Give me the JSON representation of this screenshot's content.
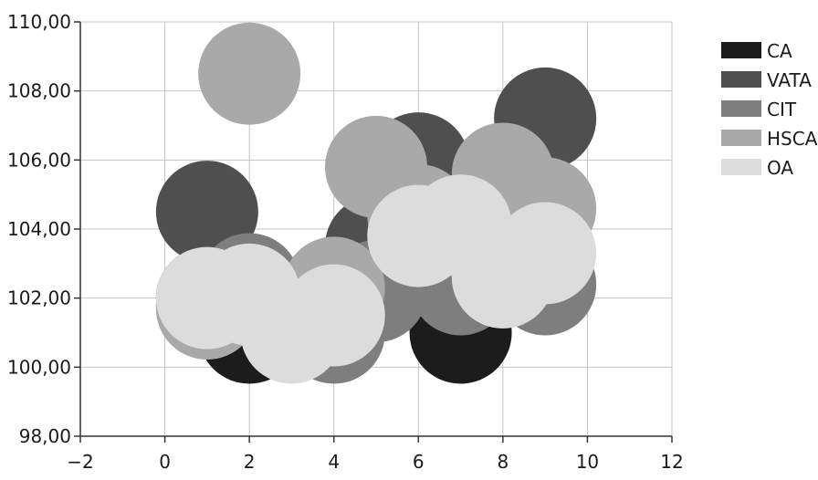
{
  "chart_data": {
    "type": "bubble",
    "x_ticks": [
      "−2",
      "0",
      "2",
      "4",
      "6",
      "8",
      "10",
      "12"
    ],
    "y_ticks": [
      "98,00",
      "100,00",
      "102,00",
      "104,00",
      "106,00",
      "108,00",
      "110,00"
    ],
    "xlim": [
      -2,
      12
    ],
    "ylim": [
      98,
      110
    ],
    "grid": true,
    "legend_position": "right",
    "series": [
      {
        "name": "CA",
        "color": "#1c1c1c",
        "points": [
          {
            "x": 1,
            "y": 102.0
          },
          {
            "x": 2,
            "y": 101.0
          },
          {
            "x": 7,
            "y": 101.0
          }
        ]
      },
      {
        "name": "VATA",
        "color": "#4f4f4f",
        "points": [
          {
            "x": 1,
            "y": 104.5
          },
          {
            "x": 5,
            "y": 103.5
          },
          {
            "x": 6,
            "y": 105.9
          },
          {
            "x": 9,
            "y": 107.2
          }
        ]
      },
      {
        "name": "CIT",
        "color": "#7e7e7e",
        "points": [
          {
            "x": 1,
            "y": 101.8
          },
          {
            "x": 2,
            "y": 102.4
          },
          {
            "x": 4,
            "y": 101.0
          },
          {
            "x": 5,
            "y": 102.2
          },
          {
            "x": 7,
            "y": 102.4
          },
          {
            "x": 9,
            "y": 102.4
          }
        ]
      },
      {
        "name": "HSCA",
        "color": "#a9a9a9",
        "points": [
          {
            "x": 1,
            "y": 101.7
          },
          {
            "x": 2,
            "y": 108.5
          },
          {
            "x": 4,
            "y": 102.3
          },
          {
            "x": 5,
            "y": 105.8
          },
          {
            "x": 6,
            "y": 104.4
          },
          {
            "x": 8,
            "y": 105.6
          },
          {
            "x": 9,
            "y": 104.6
          }
        ]
      },
      {
        "name": "OA",
        "color": "#dcdcdc",
        "points": [
          {
            "x": 1,
            "y": 102.0
          },
          {
            "x": 2,
            "y": 102.1
          },
          {
            "x": 3,
            "y": 101.0
          },
          {
            "x": 4,
            "y": 101.5
          },
          {
            "x": 6,
            "y": 103.8
          },
          {
            "x": 7,
            "y": 104.1
          },
          {
            "x": 8,
            "y": 102.6
          },
          {
            "x": 9,
            "y": 103.3
          }
        ]
      }
    ]
  }
}
